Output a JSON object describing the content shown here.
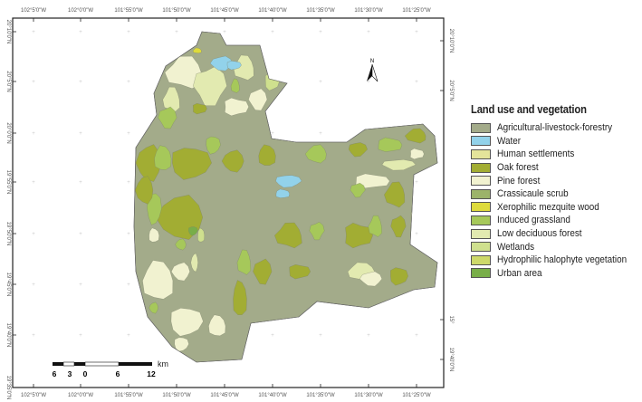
{
  "map": {
    "top_axis_labels": [
      "102°5'0\"W",
      "102°0'0\"W",
      "101°55'0\"W",
      "101°50'0\"W",
      "101°45'0\"W",
      "101°40'0\"W",
      "101°35'0\"W",
      "101°30'0\"W",
      "101°25'0\"W"
    ],
    "bottom_axis_labels": [
      "102°5'0\"W",
      "102°0'0\"W",
      "101°55'0\"W",
      "101°50'0\"W",
      "101°45'0\"W",
      "101°40'0\"W",
      "101°35'0\"W",
      "101°30'0\"W",
      "101°25'0\"W"
    ],
    "left_axis_labels": [
      "20°10'0\"N",
      "20°5'0\"N",
      "20°0'0\"N",
      "19°55'0\"N",
      "19°50'0\"N",
      "19°45'0\"N",
      "19°40'0\"N",
      "19°35'0\"N"
    ],
    "right_axis_labels": [
      "20°10'0\"N",
      "20°5'0\"N",
      "15°",
      "19°40'0\"N"
    ],
    "north_label": "N",
    "scale_bar": {
      "labels": [
        "6",
        "3",
        "0",
        "6",
        "12"
      ],
      "unit": "km"
    }
  },
  "legend": {
    "title": "Land use and vegetation",
    "items": [
      {
        "label": "Agricultural-livestock-forestry",
        "color": "#a3ab8a"
      },
      {
        "label": "Water",
        "color": "#92d2ea"
      },
      {
        "label": "Human settlements",
        "color": "#e4e49a"
      },
      {
        "label": "Oak forest",
        "color": "#a2ad33"
      },
      {
        "label": "Pine forest",
        "color": "#f1f2d0"
      },
      {
        "label": "Crassicaule scrub",
        "color": "#9cb36a"
      },
      {
        "label": "Xerophilic mezquite wood",
        "color": "#dedb3c"
      },
      {
        "label": "Induced grassland",
        "color": "#a6c85a"
      },
      {
        "label": "Low deciduous forest",
        "color": "#e2eab0"
      },
      {
        "label": "Wetlands",
        "color": "#cfe08e"
      },
      {
        "label": "Hydrophilic halophyte vegetation",
        "color": "#cdd96a"
      },
      {
        "label": "Urban area",
        "color": "#78ae48"
      }
    ]
  }
}
